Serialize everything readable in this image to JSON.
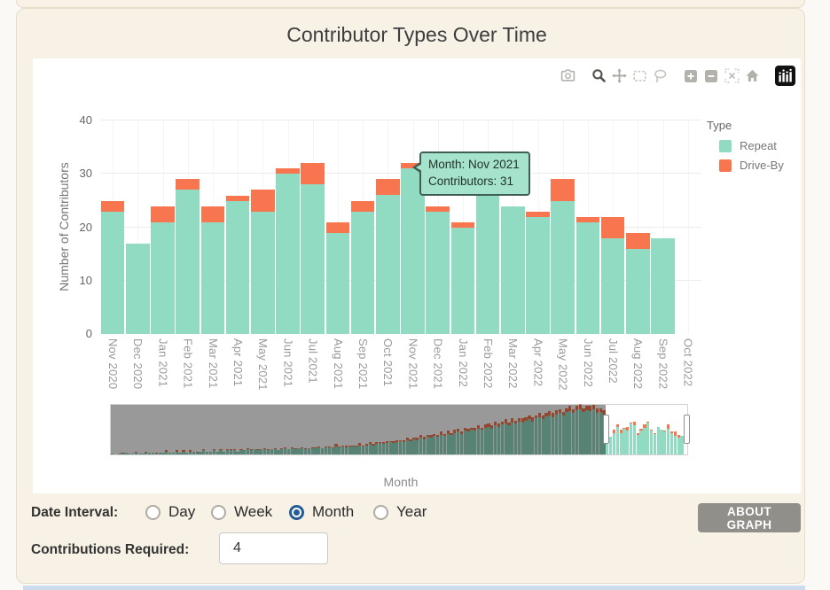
{
  "page": {
    "title": "Contributor Types Over Time"
  },
  "chart_data": {
    "type": "bar",
    "stacked": true,
    "title": "Contributor Types Over Time",
    "xlabel": "Month",
    "ylabel": "Number of Contributors",
    "ylim": [
      0,
      40
    ],
    "yticks": [
      0,
      10,
      20,
      30,
      40
    ],
    "grid": true,
    "legend_title": "Type",
    "legend_position": "right",
    "categories": [
      "Nov 2020",
      "Dec 2020",
      "Jan 2021",
      "Feb 2021",
      "Mar 2021",
      "Apr 2021",
      "May 2021",
      "Jun 2021",
      "Jul 2021",
      "Aug 2021",
      "Sep 2021",
      "Oct 2021",
      "Nov 2021",
      "Dec 2021",
      "Jan 2022",
      "Feb 2022",
      "Mar 2022",
      "Apr 2022",
      "May 2022",
      "Jun 2022",
      "Jul 2022",
      "Aug 2022",
      "Sep 2022",
      "Oct 2022"
    ],
    "series": [
      {
        "name": "Repeat",
        "color": "#90dbc1",
        "values": [
          23,
          17,
          21,
          27,
          21,
          25,
          23,
          30,
          28,
          19,
          23,
          26,
          31,
          23,
          20,
          27,
          24,
          22,
          25,
          21,
          18,
          16,
          18,
          0
        ]
      },
      {
        "name": "Drive-By",
        "color": "#f8764f",
        "values": [
          2,
          0,
          3,
          2,
          3,
          1,
          4,
          1,
          4,
          2,
          2,
          3,
          1,
          1,
          1,
          0,
          0,
          1,
          4,
          1,
          4,
          3,
          0,
          0
        ]
      }
    ]
  },
  "tooltip": {
    "line1": "Month: Nov 2021",
    "line2": "Contributors: 31"
  },
  "rangeslider": {
    "window_start": "Nov 2020",
    "window_end": "Oct 2022",
    "masked_totals": [
      1,
      0,
      1,
      1,
      2,
      1,
      1,
      2,
      1,
      1,
      2,
      2,
      2,
      1,
      2,
      2,
      3,
      2,
      2,
      3,
      2,
      3,
      2,
      3,
      3,
      2,
      3,
      4,
      3,
      3,
      4,
      3,
      4,
      3,
      4,
      4,
      4,
      3,
      4,
      4,
      5,
      4,
      5,
      4,
      5,
      5,
      4,
      5,
      5,
      4,
      5,
      6,
      5,
      6,
      5,
      6,
      6,
      5,
      6,
      6,
      6,
      7,
      6,
      7,
      7,
      6,
      8,
      7,
      8,
      7,
      8,
      8,
      8,
      9,
      8,
      9,
      10,
      9,
      10,
      11,
      10,
      11,
      12,
      11,
      12,
      13,
      12,
      14,
      13,
      15,
      14,
      16,
      15,
      17,
      16,
      18,
      17,
      19,
      18,
      20,
      19,
      21,
      22,
      20,
      23,
      22,
      24,
      23,
      25,
      24,
      26,
      27,
      25,
      28,
      27,
      29,
      30,
      28,
      31,
      30,
      32,
      31,
      33,
      34,
      32,
      35,
      36,
      34,
      37,
      38,
      36,
      39,
      40,
      38,
      41,
      42,
      40,
      43,
      44,
      41,
      43,
      42,
      44,
      40,
      41,
      39
    ],
    "masked_caps": [
      0,
      0,
      0,
      1,
      0,
      0,
      0,
      1,
      0,
      0,
      1,
      0,
      0,
      1,
      0,
      0,
      1,
      0,
      0,
      1,
      0,
      1,
      0,
      1,
      0,
      1,
      0,
      1,
      0,
      0,
      1,
      0,
      1,
      0,
      1,
      1,
      1,
      0,
      1,
      0,
      1,
      1,
      0,
      1,
      0,
      1,
      1,
      0,
      1,
      0,
      1,
      1,
      0,
      1,
      1,
      0,
      1,
      1,
      0,
      1,
      1,
      1,
      0,
      1,
      1,
      1,
      2,
      1,
      1,
      2,
      1,
      1,
      1,
      2,
      1,
      1,
      2,
      1,
      2,
      1,
      2,
      2,
      1,
      2,
      2,
      1,
      2,
      2,
      2,
      1,
      2,
      3,
      2,
      2,
      3,
      2,
      2,
      3,
      2,
      3,
      2,
      3,
      3,
      2,
      3,
      3,
      2,
      3,
      3,
      2,
      3,
      3,
      3,
      4,
      3,
      3,
      4,
      3,
      4,
      3,
      3,
      4,
      3,
      4,
      4,
      3,
      4,
      4,
      3,
      4,
      4,
      4,
      4,
      3,
      4,
      5,
      4,
      4,
      5,
      4,
      4,
      5,
      4,
      5,
      4,
      4
    ]
  },
  "modebar": {
    "icons": [
      "camera-icon",
      "zoom-icon",
      "pan-icon",
      "box-select-icon",
      "lasso-icon",
      "zoom-in-icon",
      "zoom-out-icon",
      "autoscale-icon",
      "reset-axes-icon",
      "plotly-logo-icon"
    ]
  },
  "controls": {
    "date_interval_label": "Date Interval:",
    "options": [
      {
        "label": "Day",
        "selected": false
      },
      {
        "label": "Week",
        "selected": false
      },
      {
        "label": "Month",
        "selected": true
      },
      {
        "label": "Year",
        "selected": false
      }
    ],
    "contributions_label": "Contributions Required:",
    "contributions_value": "4",
    "about_button": "ABOUT GRAPH"
  }
}
